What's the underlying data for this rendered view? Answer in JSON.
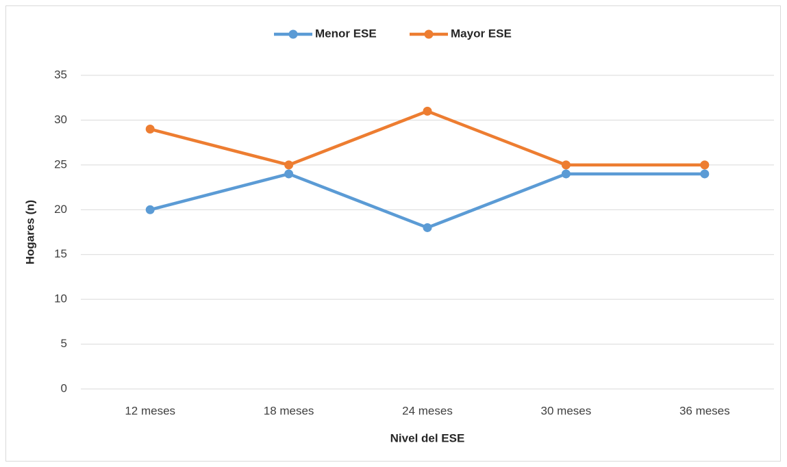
{
  "chart_data": {
    "type": "line",
    "categories": [
      "12 meses",
      "18 meses",
      "24 meses",
      "30 meses",
      "36 meses"
    ],
    "series": [
      {
        "name": "Menor ESE",
        "color": "#5b9bd5",
        "values": [
          20,
          24,
          18,
          24,
          24
        ]
      },
      {
        "name": "Mayor ESE",
        "color": "#ed7d31",
        "values": [
          29,
          25,
          31,
          25,
          25
        ]
      }
    ],
    "xlabel": "Nivel del ESE",
    "ylabel": "Hogares (n)",
    "ylim": [
      0,
      35
    ],
    "yticks": [
      0,
      5,
      10,
      15,
      20,
      25,
      30,
      35
    ],
    "grid": true,
    "legend": "top"
  }
}
